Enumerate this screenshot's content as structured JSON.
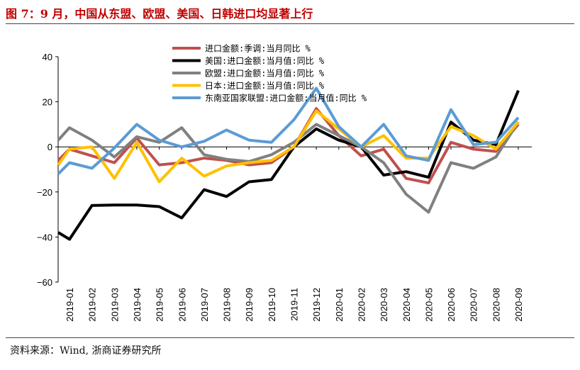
{
  "header": {
    "title": "图 7：9 月，中国从东盟、欧盟、美国、日韩进口均显著上行"
  },
  "footer": {
    "source": "资料来源：Wind, 浙商证券研究所"
  },
  "chart_data": {
    "type": "line",
    "title": "",
    "xlabel": "",
    "ylabel": "",
    "ylim": [
      -60,
      40
    ],
    "yticks": [
      40,
      20,
      0,
      -20,
      -40,
      -60
    ],
    "ytick_labels": [
      "40",
      "20",
      "0",
      "−20",
      "−40",
      "−60"
    ],
    "legend_position": "top-center",
    "x_labels": [
      "2019-01",
      "2019-02",
      "2019-03",
      "2019-04",
      "2019-05",
      "2019-06",
      "2019-07",
      "2019-08",
      "2019-09",
      "2019-10",
      "2019-11",
      "2019-12",
      "2020-01",
      "2020-02",
      "2020-03",
      "2020-04",
      "2020-05",
      "2020-06",
      "2020-07",
      "2020-08",
      "2020-09"
    ],
    "x": [
      -0.5,
      0,
      1,
      2,
      3,
      4,
      5,
      6,
      7,
      8,
      9,
      10,
      11,
      12,
      13,
      14,
      15,
      16,
      17,
      18,
      19,
      20
    ],
    "series": [
      {
        "name": "进口金额:季调:当月同比 %",
        "color": "#c0504d",
        "values": [
          -6,
          -1,
          -4,
          -7,
          4,
          -8,
          -7,
          -5,
          -6,
          -8,
          -7,
          0,
          17,
          5,
          -4,
          -1,
          -14,
          -16,
          2,
          -1,
          -2,
          10
        ]
      },
      {
        "name": "美国:进口金额:当月值:同比 %",
        "color": "#000000",
        "values": [
          -38,
          -41,
          -26,
          -25.8,
          -25.8,
          -26.5,
          -31.5,
          -19,
          -22,
          -15.5,
          -14.5,
          0,
          8,
          3,
          0,
          -12.5,
          -11,
          -13.5,
          11,
          3,
          1,
          25
        ]
      },
      {
        "name": "欧盟:进口金额:当月值:同比 %",
        "color": "#808080",
        "values": [
          3,
          8.5,
          3,
          -4.5,
          4.5,
          2,
          8.5,
          -3.5,
          -5.5,
          -6.5,
          -3.5,
          2,
          10,
          5,
          0,
          -7,
          -21,
          -29,
          -7,
          -9.5,
          -4.5,
          11
        ]
      },
      {
        "name": "日本:进口金额:当月值:同比 %",
        "color": "#ffc000",
        "values": [
          -8,
          -1,
          0,
          -14,
          2,
          -15.5,
          -5,
          -13,
          -8.5,
          -7,
          -6,
          0,
          16,
          8,
          0,
          5,
          -5,
          -5,
          9,
          5,
          -1,
          11
        ]
      },
      {
        "name": "东南亚国家联盟:进口金额:当月值:同比 %",
        "color": "#5b9bd5",
        "values": [
          -12,
          -7,
          -9.5,
          -0.5,
          10,
          3,
          0,
          2.5,
          7.5,
          3,
          2,
          12,
          26,
          9,
          0,
          10,
          -4,
          -6,
          16.5,
          1,
          2,
          13
        ]
      }
    ]
  }
}
